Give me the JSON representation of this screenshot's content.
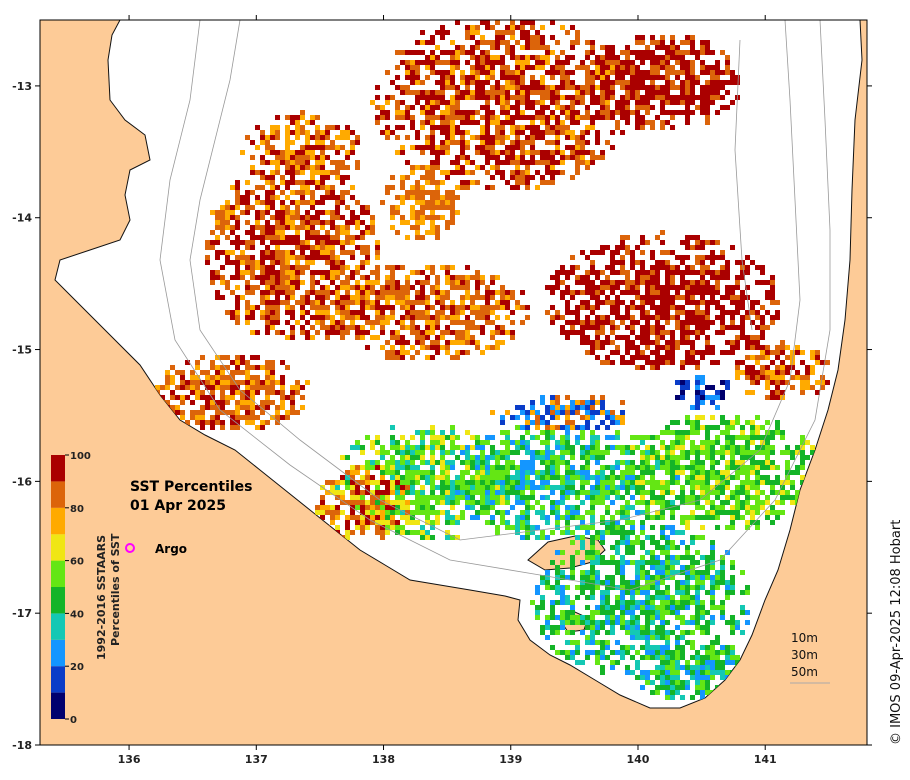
{
  "map": {
    "title_line1": "SST Percentiles",
    "title_line2": "01 Apr 2025",
    "land_color": "#fdcb97",
    "frame_color": "#000000",
    "x_axis": {
      "range": [
        135.3,
        141.8
      ],
      "ticks": [
        {
          "value": 136,
          "label": "136"
        },
        {
          "value": 137,
          "label": "137"
        },
        {
          "value": 138,
          "label": "138"
        },
        {
          "value": 139,
          "label": "139"
        },
        {
          "value": 140,
          "label": "140"
        },
        {
          "value": 141,
          "label": "141"
        }
      ]
    },
    "y_axis": {
      "range": [
        -18.0,
        -12.5
      ],
      "ticks": [
        {
          "value": -13,
          "label": "-13"
        },
        {
          "value": -14,
          "label": "-14"
        },
        {
          "value": -15,
          "label": "-15"
        },
        {
          "value": -16,
          "label": "-16"
        },
        {
          "value": -17,
          "label": "-17"
        },
        {
          "value": -18,
          "label": "-18"
        }
      ]
    },
    "legend": {
      "argo_label": "Argo",
      "argo_marker_color": "#ff00ff",
      "argo_position": {
        "lon": 136.0,
        "lat": -16.5
      }
    },
    "depth_contours": [
      "10m",
      "30m",
      "50m"
    ],
    "credit": "© IMOS 09-Apr-2025 12:08 Hobart"
  },
  "colorbar": {
    "title_line1": "1992-2016 SSTAARS",
    "title_line2": "Percentiles of SST",
    "range": [
      0,
      100
    ],
    "ticks": [
      {
        "value": 0,
        "label": "0"
      },
      {
        "value": 20,
        "label": "20"
      },
      {
        "value": 40,
        "label": "40"
      },
      {
        "value": 60,
        "label": "60"
      },
      {
        "value": 80,
        "label": "80"
      },
      {
        "value": 100,
        "label": "100"
      }
    ],
    "bins": [
      {
        "from": 0,
        "to": 10,
        "color": "#00006e"
      },
      {
        "from": 10,
        "to": 20,
        "color": "#0a3cc8"
      },
      {
        "from": 20,
        "to": 30,
        "color": "#1496ff"
      },
      {
        "from": 30,
        "to": 40,
        "color": "#14c8b4"
      },
      {
        "from": 40,
        "to": 50,
        "color": "#14b428"
      },
      {
        "from": 50,
        "to": 60,
        "color": "#64e614"
      },
      {
        "from": 60,
        "to": 70,
        "color": "#f0e614"
      },
      {
        "from": 70,
        "to": 80,
        "color": "#ffaa00"
      },
      {
        "from": 80,
        "to": 90,
        "color": "#dc640a"
      },
      {
        "from": 90,
        "to": 100,
        "color": "#aa0000"
      }
    ]
  }
}
